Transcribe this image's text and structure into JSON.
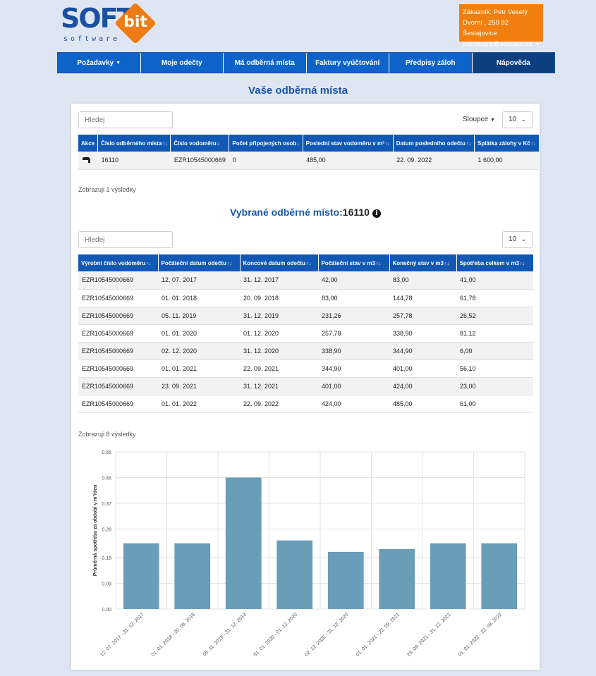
{
  "logo": {
    "soft": "SOFT",
    "bit": "bit",
    "software": "software"
  },
  "customer": {
    "line1": "Zákazník: Petr Veselý",
    "line2": "Dvorní , 250 92 Šestajovice",
    "email": "petrvesely@seznam.cz"
  },
  "nav": [
    "Požadavky",
    "Moje odečty",
    "Má odběrná místa",
    "Faktury vyúčtování",
    "Předpisy záloh",
    "Nápověda"
  ],
  "page_title": "Vaše odběrná místa",
  "table1": {
    "search_placeholder": "Hledej",
    "columns_label": "Sloupce",
    "page_size": "10",
    "headers": [
      "Akce",
      "Číslo odběrného místa",
      "Číslo vodoměru",
      "Počet připojených osob",
      "Poslední stav vodoměru v m³",
      "Datum posledního odečtu",
      "Splátka zálohy v Kč"
    ],
    "rows": [
      [
        "",
        "16110",
        "EZR10545000669",
        "0",
        "485,00",
        "22. 09. 2022",
        "1 600,00"
      ]
    ],
    "info": "Zobrazuji 1 výsledky"
  },
  "selected": {
    "label": "Vybrané odběrné místo:",
    "number": "16110"
  },
  "table2": {
    "search_placeholder": "Hledej",
    "page_size": "10",
    "headers": [
      "Výrobní číslo vodoměru",
      "Počáteční datum odečtu",
      "Koncové datum odečtu",
      "Počáteční stav v m3",
      "Konečný stav v m3",
      "Spotřeba celkem v m3"
    ],
    "rows": [
      [
        "EZR10545000669",
        "12. 07. 2017",
        "31. 12. 2017",
        "42,00",
        "83,00",
        "41,00"
      ],
      [
        "EZR10545000669",
        "01. 01. 2018",
        "20. 09. 2018",
        "83,00",
        "144,78",
        "61,78"
      ],
      [
        "EZR10545000669",
        "05. 11. 2019",
        "31. 12. 2019",
        "231,26",
        "257,78",
        "26,52"
      ],
      [
        "EZR10545000669",
        "01. 01. 2020",
        "01. 12. 2020",
        "257,78",
        "338,90",
        "81,12"
      ],
      [
        "EZR10545000669",
        "02. 12. 2020",
        "31. 12. 2020",
        "338,90",
        "344,90",
        "6,00"
      ],
      [
        "EZR10545000669",
        "01. 01. 2021",
        "22. 09. 2021",
        "344,90",
        "401,00",
        "56,10"
      ],
      [
        "EZR10545000669",
        "23. 09. 2021",
        "31. 12. 2021",
        "401,00",
        "424,00",
        "23,00"
      ],
      [
        "EZR10545000669",
        "01. 01. 2022",
        "22. 09. 2022",
        "424,00",
        "485,00",
        "61,00"
      ]
    ],
    "info": "Zobrazuji 8 výsledky"
  },
  "chart_data": {
    "type": "bar",
    "title": "",
    "xlabel": "",
    "ylabel": "Průměrná spotřeba za období v m³/den",
    "ylim": [
      0,
      0.55
    ],
    "yticks": [
      "0.00",
      "0.09",
      "0.18",
      "0.28",
      "0.37",
      "0.46",
      "0.55"
    ],
    "categories": [
      "12. 07. 2017 - 31. 12. 2017",
      "01. 01. 2018 - 20. 09. 2018",
      "05. 11. 2019 - 31. 12. 2019",
      "01. 01. 2020 - 01. 12. 2020",
      "02. 12. 2020 - 31. 12. 2020",
      "01. 01. 2021 - 22. 09. 2021",
      "23. 09. 2021 - 31. 12. 2021",
      "01. 01. 2022 - 22. 09. 2022"
    ],
    "values": [
      0.23,
      0.23,
      0.46,
      0.24,
      0.2,
      0.21,
      0.23,
      0.23
    ],
    "color": "#6a9db8",
    "grid": true
  }
}
